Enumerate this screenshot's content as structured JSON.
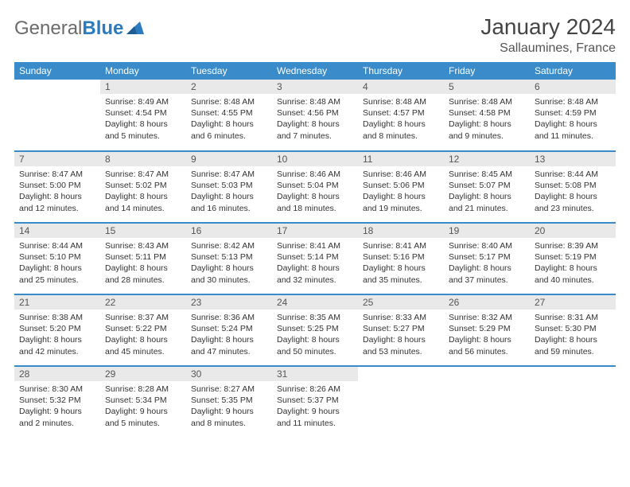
{
  "header": {
    "logo_general": "General",
    "logo_blue": "Blue",
    "month_title": "January 2024",
    "location": "Sallaumines, France"
  },
  "calendar": {
    "day_headers": [
      "Sunday",
      "Monday",
      "Tuesday",
      "Wednesday",
      "Thursday",
      "Friday",
      "Saturday"
    ],
    "header_bg": "#3a8bc9",
    "header_fg": "#ffffff",
    "daynum_bg": "#e9e9e9",
    "row_border_color": "#3a8bc9",
    "weeks": [
      [
        {
          "num": "",
          "sunrise": "",
          "sunset": "",
          "daylight": ""
        },
        {
          "num": "1",
          "sunrise": "Sunrise: 8:49 AM",
          "sunset": "Sunset: 4:54 PM",
          "daylight": "Daylight: 8 hours and 5 minutes."
        },
        {
          "num": "2",
          "sunrise": "Sunrise: 8:48 AM",
          "sunset": "Sunset: 4:55 PM",
          "daylight": "Daylight: 8 hours and 6 minutes."
        },
        {
          "num": "3",
          "sunrise": "Sunrise: 8:48 AM",
          "sunset": "Sunset: 4:56 PM",
          "daylight": "Daylight: 8 hours and 7 minutes."
        },
        {
          "num": "4",
          "sunrise": "Sunrise: 8:48 AM",
          "sunset": "Sunset: 4:57 PM",
          "daylight": "Daylight: 8 hours and 8 minutes."
        },
        {
          "num": "5",
          "sunrise": "Sunrise: 8:48 AM",
          "sunset": "Sunset: 4:58 PM",
          "daylight": "Daylight: 8 hours and 9 minutes."
        },
        {
          "num": "6",
          "sunrise": "Sunrise: 8:48 AM",
          "sunset": "Sunset: 4:59 PM",
          "daylight": "Daylight: 8 hours and 11 minutes."
        }
      ],
      [
        {
          "num": "7",
          "sunrise": "Sunrise: 8:47 AM",
          "sunset": "Sunset: 5:00 PM",
          "daylight": "Daylight: 8 hours and 12 minutes."
        },
        {
          "num": "8",
          "sunrise": "Sunrise: 8:47 AM",
          "sunset": "Sunset: 5:02 PM",
          "daylight": "Daylight: 8 hours and 14 minutes."
        },
        {
          "num": "9",
          "sunrise": "Sunrise: 8:47 AM",
          "sunset": "Sunset: 5:03 PM",
          "daylight": "Daylight: 8 hours and 16 minutes."
        },
        {
          "num": "10",
          "sunrise": "Sunrise: 8:46 AM",
          "sunset": "Sunset: 5:04 PM",
          "daylight": "Daylight: 8 hours and 18 minutes."
        },
        {
          "num": "11",
          "sunrise": "Sunrise: 8:46 AM",
          "sunset": "Sunset: 5:06 PM",
          "daylight": "Daylight: 8 hours and 19 minutes."
        },
        {
          "num": "12",
          "sunrise": "Sunrise: 8:45 AM",
          "sunset": "Sunset: 5:07 PM",
          "daylight": "Daylight: 8 hours and 21 minutes."
        },
        {
          "num": "13",
          "sunrise": "Sunrise: 8:44 AM",
          "sunset": "Sunset: 5:08 PM",
          "daylight": "Daylight: 8 hours and 23 minutes."
        }
      ],
      [
        {
          "num": "14",
          "sunrise": "Sunrise: 8:44 AM",
          "sunset": "Sunset: 5:10 PM",
          "daylight": "Daylight: 8 hours and 25 minutes."
        },
        {
          "num": "15",
          "sunrise": "Sunrise: 8:43 AM",
          "sunset": "Sunset: 5:11 PM",
          "daylight": "Daylight: 8 hours and 28 minutes."
        },
        {
          "num": "16",
          "sunrise": "Sunrise: 8:42 AM",
          "sunset": "Sunset: 5:13 PM",
          "daylight": "Daylight: 8 hours and 30 minutes."
        },
        {
          "num": "17",
          "sunrise": "Sunrise: 8:41 AM",
          "sunset": "Sunset: 5:14 PM",
          "daylight": "Daylight: 8 hours and 32 minutes."
        },
        {
          "num": "18",
          "sunrise": "Sunrise: 8:41 AM",
          "sunset": "Sunset: 5:16 PM",
          "daylight": "Daylight: 8 hours and 35 minutes."
        },
        {
          "num": "19",
          "sunrise": "Sunrise: 8:40 AM",
          "sunset": "Sunset: 5:17 PM",
          "daylight": "Daylight: 8 hours and 37 minutes."
        },
        {
          "num": "20",
          "sunrise": "Sunrise: 8:39 AM",
          "sunset": "Sunset: 5:19 PM",
          "daylight": "Daylight: 8 hours and 40 minutes."
        }
      ],
      [
        {
          "num": "21",
          "sunrise": "Sunrise: 8:38 AM",
          "sunset": "Sunset: 5:20 PM",
          "daylight": "Daylight: 8 hours and 42 minutes."
        },
        {
          "num": "22",
          "sunrise": "Sunrise: 8:37 AM",
          "sunset": "Sunset: 5:22 PM",
          "daylight": "Daylight: 8 hours and 45 minutes."
        },
        {
          "num": "23",
          "sunrise": "Sunrise: 8:36 AM",
          "sunset": "Sunset: 5:24 PM",
          "daylight": "Daylight: 8 hours and 47 minutes."
        },
        {
          "num": "24",
          "sunrise": "Sunrise: 8:35 AM",
          "sunset": "Sunset: 5:25 PM",
          "daylight": "Daylight: 8 hours and 50 minutes."
        },
        {
          "num": "25",
          "sunrise": "Sunrise: 8:33 AM",
          "sunset": "Sunset: 5:27 PM",
          "daylight": "Daylight: 8 hours and 53 minutes."
        },
        {
          "num": "26",
          "sunrise": "Sunrise: 8:32 AM",
          "sunset": "Sunset: 5:29 PM",
          "daylight": "Daylight: 8 hours and 56 minutes."
        },
        {
          "num": "27",
          "sunrise": "Sunrise: 8:31 AM",
          "sunset": "Sunset: 5:30 PM",
          "daylight": "Daylight: 8 hours and 59 minutes."
        }
      ],
      [
        {
          "num": "28",
          "sunrise": "Sunrise: 8:30 AM",
          "sunset": "Sunset: 5:32 PM",
          "daylight": "Daylight: 9 hours and 2 minutes."
        },
        {
          "num": "29",
          "sunrise": "Sunrise: 8:28 AM",
          "sunset": "Sunset: 5:34 PM",
          "daylight": "Daylight: 9 hours and 5 minutes."
        },
        {
          "num": "30",
          "sunrise": "Sunrise: 8:27 AM",
          "sunset": "Sunset: 5:35 PM",
          "daylight": "Daylight: 9 hours and 8 minutes."
        },
        {
          "num": "31",
          "sunrise": "Sunrise: 8:26 AM",
          "sunset": "Sunset: 5:37 PM",
          "daylight": "Daylight: 9 hours and 11 minutes."
        },
        {
          "num": "",
          "sunrise": "",
          "sunset": "",
          "daylight": ""
        },
        {
          "num": "",
          "sunrise": "",
          "sunset": "",
          "daylight": ""
        },
        {
          "num": "",
          "sunrise": "",
          "sunset": "",
          "daylight": ""
        }
      ]
    ]
  }
}
